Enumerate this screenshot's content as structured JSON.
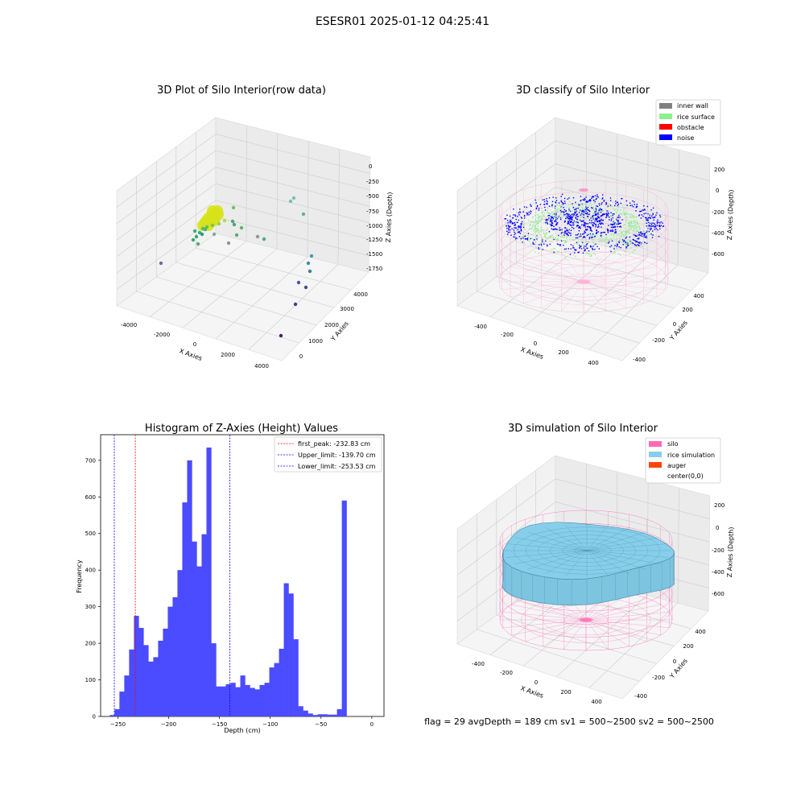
{
  "suptitle": "ESESR01 2025-01-12 04:25:41",
  "footer": "flag = 29  avgDepth = 189 cm  sv1 = 500~2500  sv2 = 500~2500",
  "colors": {
    "hist_bar": "#4b4bff",
    "first_peak_line": "#ff0000",
    "limit_line": "#0000ff",
    "inner_wall": "#808080",
    "rice_surface": "#90ee90",
    "obstacle": "#ff0000",
    "noise": "#0000ff",
    "silo": "#ff69b4",
    "rice_simulation": "#87ceeb",
    "auger": "#ff4500"
  },
  "chart_data": [
    {
      "type": "scatter",
      "title": "3D Plot of Silo Interior(row data)",
      "xlabel": "X Axies",
      "ylabel": "Y Axies",
      "zlabel": "Z Axies (Depth)",
      "xlim": [
        -4000,
        4000
      ],
      "ylim": [
        0,
        4000
      ],
      "zlim": [
        -1750,
        0
      ],
      "xticks": [
        "-4000",
        "-2000",
        "0",
        "2000",
        "4000"
      ],
      "yticks": [
        "0",
        "1000",
        "2000",
        "3000",
        "4000"
      ],
      "zticks": [
        "0",
        "-250",
        "-500",
        "-750",
        "-1000",
        "-1250",
        "-1500",
        "-1750"
      ],
      "grid": true
    },
    {
      "type": "scatter",
      "title": "3D classify of Silo Interior",
      "xlabel": "X Axies",
      "ylabel": "Y Axies",
      "zlabel": "Z Axies (Depth)",
      "xticks": [
        "-400",
        "-200",
        "0",
        "200",
        "400"
      ],
      "yticks": [
        "-400",
        "-200",
        "0",
        "200",
        "400"
      ],
      "zticks": [
        "200",
        "0",
        "-200",
        "-400",
        "-600"
      ],
      "legend": [
        "inner wall",
        "rice surface",
        "obstacle",
        "noise"
      ],
      "legend_position": "top-right",
      "grid": true
    },
    {
      "type": "bar",
      "title": "Histogram of Z-Axies (Height) Values",
      "xlabel": "Depth (cm)",
      "ylabel": "Frequency",
      "xlim": [
        -267,
        12
      ],
      "ylim": [
        0,
        770
      ],
      "xticks": [
        -250,
        -200,
        -150,
        -100,
        -50,
        0
      ],
      "xtick_labels": [
        "−250",
        "−200",
        "−150",
        "−100",
        "−50",
        "0"
      ],
      "yticks": [
        0,
        100,
        200,
        300,
        400,
        500,
        600,
        700
      ],
      "bin_start": -258,
      "bin_width": 4.76,
      "values": [
        4,
        20,
        68,
        112,
        183,
        275,
        242,
        195,
        150,
        162,
        207,
        240,
        300,
        326,
        400,
        585,
        700,
        478,
        410,
        498,
        735,
        200,
        82,
        82,
        88,
        92,
        80,
        112,
        86,
        78,
        74,
        86,
        92,
        134,
        146,
        185,
        364,
        336,
        211,
        28,
        16,
        8,
        4,
        6,
        6,
        5,
        5,
        20,
        590
      ],
      "vlines": [
        {
          "label": "first_peak: -232.83 cm",
          "x": -232.83,
          "color": "#ff0000"
        },
        {
          "label": "Upper_limit: -139.70 cm",
          "x": -139.7,
          "color": "#0000ff"
        },
        {
          "label": "Lower_limit: -253.53 cm",
          "x": -253.53,
          "color": "#0000ff"
        }
      ],
      "legend_position": "top-right"
    },
    {
      "type": "scatter",
      "title": "3D simulation of Silo Interior",
      "xlabel": "X Axies",
      "ylabel": "Y Axies",
      "zlabel": "Z Axies (Depth)",
      "xticks": [
        "-400",
        "-200",
        "0",
        "200",
        "400"
      ],
      "yticks": [
        "-400",
        "-200",
        "0",
        "200",
        "400"
      ],
      "zticks": [
        "200",
        "0",
        "-200",
        "-400",
        "-600"
      ],
      "legend": [
        "silo",
        "rice simulation",
        "auger",
        "center(0,0)"
      ],
      "legend_position": "top-right",
      "grid": true
    }
  ]
}
